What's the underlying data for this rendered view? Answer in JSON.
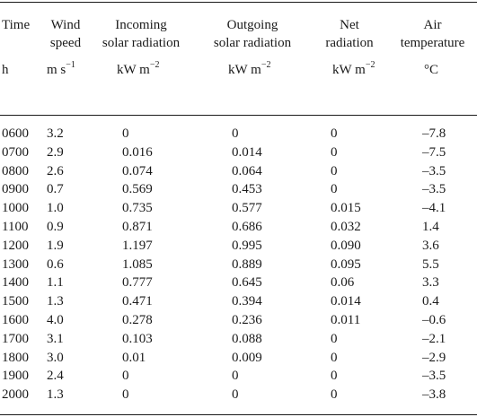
{
  "header": {
    "time": "Time",
    "wind_l1": "Wind",
    "wind_l2": "speed",
    "inc_l1": "Incoming",
    "inc_l2": "solar radiation",
    "out_l1": "Outgoing",
    "out_l2": "solar radiation",
    "net_l1": "Net",
    "net_l2": "radiation",
    "air_l1": "Air",
    "air_l2": "temperature"
  },
  "units": {
    "time": "h",
    "wind_base": "m s",
    "wind_exp": "−1",
    "inc_base": "kW m",
    "inc_exp": "−2",
    "out_base": "kW m",
    "out_exp": "−2",
    "net_base": "kW m",
    "net_exp": "−2",
    "air": "°C"
  },
  "rows": [
    {
      "time": "0600",
      "wind": "3.2",
      "inc": "0",
      "out": "0",
      "net": "0",
      "air": "–7.8"
    },
    {
      "time": "0700",
      "wind": "2.9",
      "inc": "0.016",
      "out": "0.014",
      "net": "0",
      "air": "–7.5"
    },
    {
      "time": "0800",
      "wind": "2.6",
      "inc": "0.074",
      "out": "0.064",
      "net": "0",
      "air": "–3.5"
    },
    {
      "time": "0900",
      "wind": "0.7",
      "inc": "0.569",
      "out": "0.453",
      "net": "0",
      "air": "–3.5"
    },
    {
      "time": "1000",
      "wind": "1.0",
      "inc": "0.735",
      "out": "0.577",
      "net": "0.015",
      "air": "–4.1"
    },
    {
      "time": "1100",
      "wind": "0.9",
      "inc": "0.871",
      "out": "0.686",
      "net": "0.032",
      "air": "1.4"
    },
    {
      "time": "1200",
      "wind": "1.9",
      "inc": "1.197",
      "out": "0.995",
      "net": "0.090",
      "air": "3.6"
    },
    {
      "time": "1300",
      "wind": "0.6",
      "inc": "1.085",
      "out": "0.889",
      "net": "0.095",
      "air": "5.5"
    },
    {
      "time": "1400",
      "wind": "1.1",
      "inc": "0.777",
      "out": "0.645",
      "net": "0.06",
      "air": "3.3"
    },
    {
      "time": "1500",
      "wind": "1.3",
      "inc": "0.471",
      "out": "0.394",
      "net": "0.014",
      "air": "0.4"
    },
    {
      "time": "1600",
      "wind": "4.0",
      "inc": "0.278",
      "out": "0.236",
      "net": "0.011",
      "air": "–0.6"
    },
    {
      "time": "1700",
      "wind": "3.1",
      "inc": "0.103",
      "out": "0.088",
      "net": "0",
      "air": "–2.1"
    },
    {
      "time": "1800",
      "wind": "3.0",
      "inc": "0.01",
      "out": "0.009",
      "net": "0",
      "air": "–2.9"
    },
    {
      "time": "1900",
      "wind": "2.4",
      "inc": "0",
      "out": "0",
      "net": "0",
      "air": "–3.5"
    },
    {
      "time": "2000",
      "wind": "1.3",
      "inc": "0",
      "out": "0",
      "net": "0",
      "air": "–3.8"
    }
  ]
}
